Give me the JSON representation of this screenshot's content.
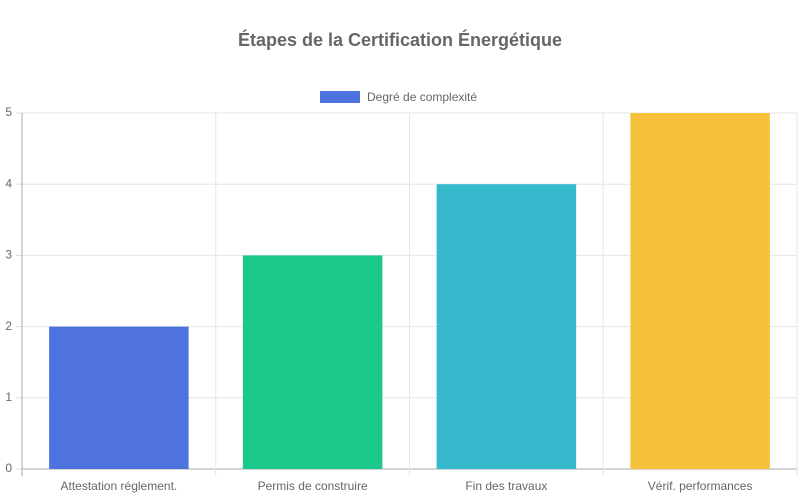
{
  "chart_data": {
    "type": "bar",
    "title": "Étapes de la Certification Énergétique",
    "categories": [
      "Attestation réglement.",
      "Permis de construire",
      "Fin des travaux",
      "Vérif. performances"
    ],
    "series": [
      {
        "name": "Degré de complexité",
        "color": "#4e73df",
        "colors": [
          "#4e73df",
          "#1cc88a",
          "#36b9cc",
          "#f6c23e"
        ],
        "values": [
          2,
          3,
          4,
          5
        ]
      }
    ],
    "ylim": [
      0,
      5
    ],
    "yticks": [
      0,
      1,
      2,
      3,
      4,
      5
    ],
    "grid": true,
    "legend": "top"
  }
}
